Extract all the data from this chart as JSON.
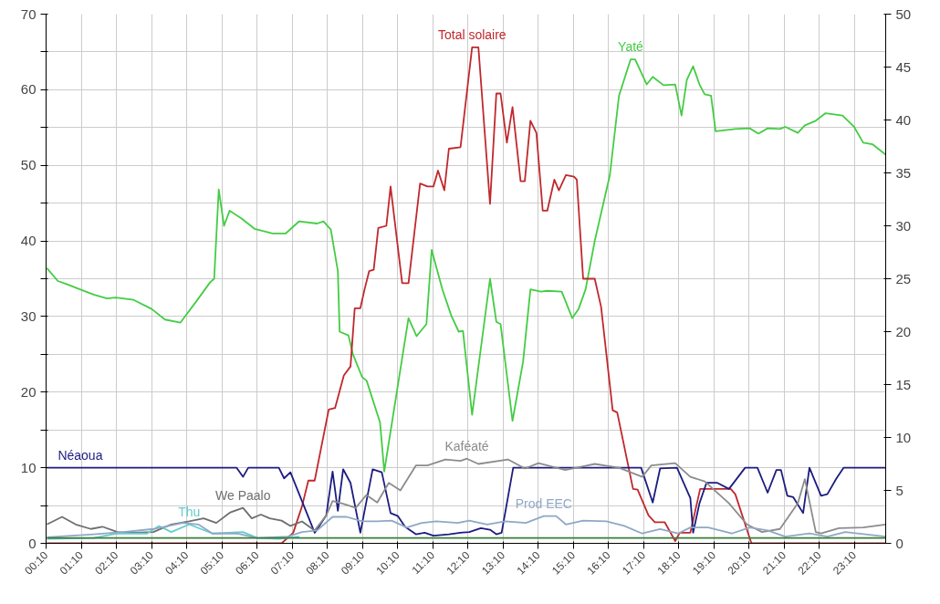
{
  "chart_data": {
    "type": "line",
    "grid": true,
    "line_style": "solid",
    "marker": "none",
    "xlim": [
      0.1667,
      24.06
    ],
    "ylim": [
      0,
      70
    ],
    "y2lim": [
      0,
      50
    ],
    "xticks": [
      {
        "value": 0.1667,
        "label": "00:10"
      },
      {
        "value": 1.1667,
        "label": "01:10"
      },
      {
        "value": 2.1667,
        "label": "02:10"
      },
      {
        "value": 3.1667,
        "label": "03:10"
      },
      {
        "value": 4.1667,
        "label": "04:10"
      },
      {
        "value": 5.1667,
        "label": "05:10"
      },
      {
        "value": 6.1667,
        "label": "06:10"
      },
      {
        "value": 7.1667,
        "label": "07:10"
      },
      {
        "value": 8.1667,
        "label": "08:10"
      },
      {
        "value": 9.1667,
        "label": "09:10"
      },
      {
        "value": 10.1667,
        "label": "10:10"
      },
      {
        "value": 11.1667,
        "label": "11:10"
      },
      {
        "value": 12.1667,
        "label": "12:10"
      },
      {
        "value": 13.1667,
        "label": "13:10"
      },
      {
        "value": 14.1667,
        "label": "14:10"
      },
      {
        "value": 15.1667,
        "label": "15:10"
      },
      {
        "value": 16.1667,
        "label": "16:10"
      },
      {
        "value": 17.1667,
        "label": "17:10"
      },
      {
        "value": 18.1667,
        "label": "18:10"
      },
      {
        "value": 19.1667,
        "label": "19:10"
      },
      {
        "value": 20.1667,
        "label": "20:10"
      },
      {
        "value": 21.1667,
        "label": "21:10"
      },
      {
        "value": 22.1667,
        "label": "22:10"
      },
      {
        "value": 23.1667,
        "label": "23:10"
      }
    ],
    "yticks": [
      0,
      {
        "value": 5,
        "label": null
      },
      10,
      {
        "value": 15,
        "label": null
      },
      20,
      {
        "value": 25,
        "label": null
      },
      30,
      {
        "value": 35,
        "label": null
      },
      40,
      {
        "value": 45,
        "label": null
      },
      50,
      {
        "value": 55,
        "label": null
      },
      60,
      {
        "value": 65,
        "label": null
      },
      70
    ],
    "y2ticks": [
      0,
      5,
      10,
      15,
      20,
      25,
      30,
      35,
      40,
      45,
      50
    ],
    "series": [
      {
        "name": "Yaté",
        "color": "#44cc44",
        "x": [
          0.19,
          0.5,
          0.75,
          1.13,
          1.52,
          1.9,
          2.15,
          2.66,
          3.17,
          3.55,
          3.99,
          4.44,
          4.83,
          4.95,
          5.08,
          5.23,
          5.39,
          5.72,
          6.1,
          6.61,
          6.99,
          7.37,
          7.88,
          8.06,
          8.27,
          8.47,
          8.52,
          8.77,
          8.9,
          9.16,
          9.29,
          9.67,
          9.79,
          10.48,
          10.71,
          10.99,
          11.14,
          11.45,
          11.7,
          11.91,
          12.03,
          12.29,
          12.8,
          12.98,
          13.1,
          13.44,
          13.74,
          13.95,
          14.25,
          14.43,
          14.84,
          15.14,
          15.32,
          15.52,
          15.78,
          16.21,
          16.47,
          16.8,
          16.93,
          17.26,
          17.43,
          17.74,
          18.07,
          18.25,
          18.4,
          18.58,
          18.76,
          18.91,
          19.09,
          19.22,
          19.78,
          20.19,
          20.44,
          20.7,
          21.05,
          21.2,
          21.56,
          21.76,
          22.07,
          22.35,
          22.83,
          23.16,
          23.42,
          23.68,
          24.06
        ],
        "values": [
          36.4,
          34.7,
          34.3,
          33.6,
          32.9,
          32.4,
          32.5,
          32.2,
          31,
          29.6,
          29.2,
          32,
          34.5,
          35,
          46.8,
          42,
          44,
          43,
          41.6,
          41,
          41,
          42.6,
          42.3,
          42.6,
          41.5,
          36,
          28,
          27.5,
          25,
          22,
          21.5,
          16,
          9.5,
          29.8,
          27.4,
          29,
          38.8,
          33.5,
          30.1,
          28,
          28.1,
          17,
          35,
          29.3,
          29,
          16.2,
          24,
          33.6,
          33.3,
          33.4,
          33.3,
          29.8,
          31,
          33.6,
          40,
          48.7,
          59.2,
          64,
          64,
          60.7,
          61.7,
          60.6,
          60.7,
          56.6,
          61.3,
          63.1,
          60.7,
          59.4,
          59.2,
          54.5,
          54.8,
          54.9,
          54.2,
          54.9,
          54.8,
          55.1,
          54.3,
          55.3,
          55.9,
          56.9,
          56.6,
          55.1,
          53,
          52.8,
          51.4
        ]
      },
      {
        "name": "Total solaire",
        "color": "#c0282d",
        "x": [
          0.19,
          6.87,
          7.2,
          7.45,
          7.63,
          7.81,
          8.21,
          8.39,
          8.64,
          8.83,
          8.95,
          9.11,
          9.23,
          9.36,
          9.49,
          9.62,
          9.85,
          9.97,
          10.3,
          10.48,
          10.81,
          11.02,
          11.19,
          11.32,
          11.5,
          11.63,
          11.96,
          12.29,
          12.47,
          12.8,
          12.98,
          13.1,
          13.28,
          13.44,
          13.67,
          13.79,
          13.95,
          14.12,
          14.3,
          14.43,
          14.63,
          14.76,
          14.96,
          15.19,
          15.27,
          15.45,
          15.78,
          15.96,
          16.29,
          16.42,
          16.87,
          17,
          17.31,
          17.49,
          17.77,
          18.07,
          18.2,
          18.5,
          18.78,
          19.17,
          19.65,
          19.78,
          20.19,
          20.24,
          24.06
        ],
        "values": [
          0,
          0,
          1.4,
          4.9,
          8.3,
          8.3,
          17.7,
          17.9,
          22.2,
          23.4,
          31.1,
          31.1,
          33.6,
          36,
          36.2,
          41.7,
          42,
          47.2,
          34.4,
          34.4,
          47.6,
          47.2,
          47.2,
          49.3,
          46.7,
          52.2,
          52.4,
          65.6,
          65.6,
          44.9,
          59.5,
          59.5,
          53,
          57.7,
          47.9,
          47.9,
          55.9,
          54.3,
          44,
          44,
          48.1,
          46.7,
          48.7,
          48.5,
          48.1,
          35,
          35,
          31.3,
          17.6,
          17.3,
          7.2,
          7.1,
          3.7,
          2.8,
          2.8,
          0.3,
          1.4,
          1.4,
          7.2,
          7.2,
          7.2,
          6.5,
          0.7,
          0,
          0
        ]
      },
      {
        "name": "Néaoua",
        "color": "#1c1c80",
        "x": [
          0.19,
          5.59,
          5.77,
          5.92,
          6.79,
          6.94,
          7.12,
          7.81,
          7.96,
          8.14,
          8.32,
          8.47,
          8.62,
          8.83,
          9.11,
          9.46,
          9.72,
          9.97,
          10.18,
          10.38,
          10.69,
          10.94,
          11.19,
          11.63,
          11.96,
          12.21,
          12.54,
          12.8,
          12.98,
          13.13,
          13.46,
          17.1,
          17.43,
          17.64,
          18.12,
          18.5,
          18.58,
          18.76,
          18.96,
          19.27,
          19.6,
          20.06,
          20.41,
          20.7,
          20.95,
          21.08,
          21.26,
          21.43,
          21.71,
          21.89,
          22.22,
          22.4,
          22.66,
          22.86,
          24.06
        ],
        "values": [
          10,
          10,
          8.8,
          10,
          10,
          8.6,
          9.4,
          1.4,
          2.4,
          3.7,
          9.5,
          4.3,
          9.8,
          8,
          1.4,
          9.8,
          9.4,
          4,
          3.6,
          2.2,
          1.2,
          1.4,
          1,
          1.2,
          1.4,
          1.5,
          2,
          1.8,
          1.2,
          1.4,
          10,
          10,
          5.4,
          9.9,
          10,
          6,
          1.4,
          5.3,
          8,
          8,
          7.2,
          10,
          10,
          6.7,
          9.7,
          9.7,
          6.3,
          6.1,
          4,
          10,
          6.3,
          6.5,
          8.6,
          10,
          10
        ]
      },
      {
        "name": "We Paalo",
        "color": "#6e6e6e",
        "x": [
          0.19,
          0.62,
          1.01,
          1.44,
          1.77,
          2.2,
          2.61,
          3.22,
          3.73,
          4.24,
          4.65,
          5.01,
          5.41,
          5.77,
          6.02,
          6.28,
          6.53,
          6.87,
          7.12,
          7.45,
          7.81
        ],
        "values": [
          2.5,
          3.5,
          2.5,
          1.9,
          2.2,
          1.5,
          1.4,
          1.5,
          2.5,
          2.9,
          3.3,
          2.7,
          4.1,
          4.7,
          3.3,
          3.8,
          3.3,
          3,
          2.3,
          2.9,
          1.7
        ]
      },
      {
        "name": "Thu",
        "color": "#66cccc",
        "x": [
          0.19,
          1.52,
          2.2,
          3.04,
          3.38,
          3.73,
          4.24,
          4.9,
          5.77,
          6.18,
          6.79,
          7.37
        ],
        "values": [
          0.6,
          0.7,
          1.3,
          1.3,
          2.3,
          1.5,
          2.5,
          1.3,
          1.5,
          0.7,
          0.6,
          0.9
        ]
      },
      {
        "name": "Kaféaté",
        "color": "#8c8c8c",
        "x": [
          7.81,
          8.14,
          8.32,
          8.64,
          8.98,
          9.28,
          9.59,
          9.92,
          10.25,
          10.69,
          11.02,
          11.53,
          11.96,
          12.14,
          12.47,
          13.31,
          13.79,
          14.18,
          14.94,
          15.78,
          16.47,
          17.13,
          17.39,
          18.07,
          18.5,
          18.91,
          19.6,
          20.11,
          20.54,
          21.05,
          21.56,
          21.76,
          22.07,
          22.22,
          22.73,
          23.42,
          24.06
        ],
        "values": [
          1.7,
          3.7,
          5.6,
          5.2,
          4.7,
          6.4,
          5.4,
          8,
          7,
          10.3,
          10.3,
          11.1,
          10.9,
          11.2,
          10.5,
          11.1,
          9.9,
          10.6,
          9.7,
          10.5,
          10,
          8.8,
          10.3,
          10.6,
          8.8,
          8.2,
          5.3,
          2.5,
          1.5,
          1.9,
          5.3,
          8.5,
          1.5,
          1.3,
          2,
          2.1,
          2.5
        ]
      },
      {
        "name": "Prod EEC",
        "color": "#8fa8c6",
        "x": [
          0.19,
          1.52,
          2.36,
          3.22,
          4.06,
          4.5,
          4.9,
          5.59,
          6.18,
          7.04,
          7.45,
          7.88,
          8.32,
          8.72,
          9.16,
          9.59,
          10,
          10.43,
          10.86,
          11.27,
          11.88,
          12.21,
          12.72,
          13.23,
          13.82,
          14.33,
          14.68,
          14.96,
          15.45,
          16.11,
          16.62,
          17.13,
          17.64,
          18.15,
          18.5,
          19.01,
          19.68,
          20.19,
          20.7,
          21.2,
          21.89,
          22.4,
          22.91,
          24.06
        ],
        "values": [
          0.8,
          1.2,
          1.5,
          1.9,
          2.7,
          2.5,
          1.3,
          1.3,
          0.7,
          0.9,
          1.5,
          1.7,
          3.5,
          3.5,
          2.9,
          2.9,
          3,
          2.1,
          2.7,
          2.9,
          2.7,
          3,
          2.5,
          2.9,
          2.7,
          3.6,
          3.6,
          2.5,
          3,
          2.9,
          2.3,
          1.3,
          1.9,
          1.3,
          2.1,
          2.1,
          1.3,
          2.1,
          1.7,
          0.9,
          1.3,
          0.9,
          1.5,
          0.9
        ]
      },
      {
        "color": "#3a7d3a",
        "x": [
          0.19,
          24.06
        ],
        "values": [
          0.7,
          0.7
        ]
      }
    ]
  }
}
